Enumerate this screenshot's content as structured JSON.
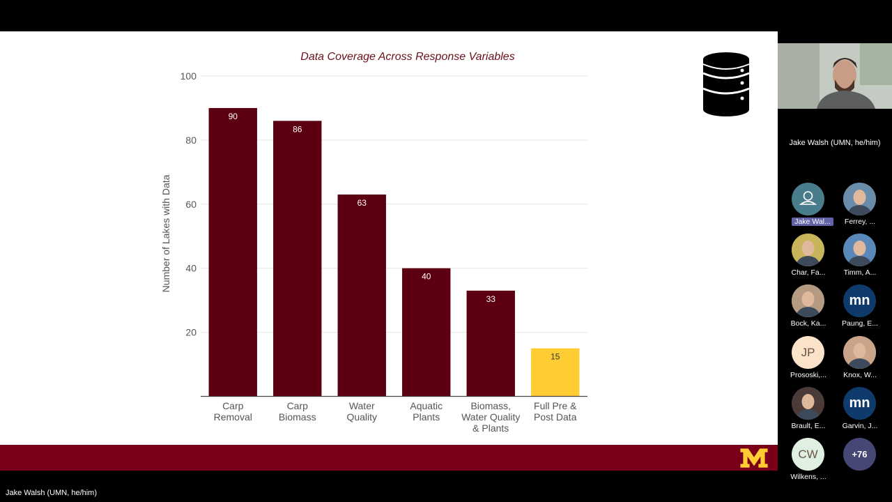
{
  "presenter": {
    "name": "Jake Walsh (UMN, he/him)"
  },
  "speaker_tile": {
    "name": "Jake Walsh (UMN, he/him)"
  },
  "colors": {
    "bar": "#5c0011",
    "highlight": "#ffcc33",
    "footer": "#7a0019",
    "title": "#6b0f1a"
  },
  "chart_data": {
    "type": "bar",
    "title": "Data Coverage Across Response Variables",
    "xlabel": "",
    "ylabel": "Number of Lakes with Data",
    "ylim": [
      0,
      100
    ],
    "yticks": [
      "20",
      "40",
      "60",
      "80",
      "100"
    ],
    "grid": true,
    "categories": [
      [
        "Carp",
        "Removal"
      ],
      [
        "Carp",
        "Biomass"
      ],
      [
        "Water",
        "Quality"
      ],
      [
        "Aquatic",
        "Plants"
      ],
      [
        "Biomass,",
        "Water Quality",
        "& Plants"
      ],
      [
        "Full Pre &",
        "Post Data"
      ]
    ],
    "values": [
      90,
      86,
      63,
      40,
      33,
      15
    ],
    "labels": [
      "90",
      "86",
      "63",
      "40",
      "33",
      "15"
    ],
    "highlighted_index": 5
  },
  "participants": [
    {
      "name": "Jake Wal...",
      "initials": "",
      "icon": "person-icon",
      "bg": "#4a7d8c",
      "highlight": true
    },
    {
      "name": "Ferrey, ...",
      "initials": "",
      "icon": "photo-avatar",
      "bg": "#6a8cab"
    },
    {
      "name": "Char, Fa...",
      "initials": "",
      "icon": "photo-avatar",
      "bg": "#c8b45a"
    },
    {
      "name": "Timm, A...",
      "initials": "",
      "icon": "photo-avatar",
      "bg": "#5a88b8"
    },
    {
      "name": "Bock, Ka...",
      "initials": "",
      "icon": "photo-avatar",
      "bg": "#b39a80"
    },
    {
      "name": "Paung, E...",
      "initials": "mn",
      "icon": "mn-logo",
      "bg": "#0e3b6b"
    },
    {
      "name": "Prososki,...",
      "initials": "JP",
      "icon": "",
      "bg": "#fbe3c9"
    },
    {
      "name": "Knox, W...",
      "initials": "",
      "icon": "photo-avatar",
      "bg": "#c9a48a"
    },
    {
      "name": "Brault, E...",
      "initials": "",
      "icon": "photo-avatar",
      "bg": "#4a3a38"
    },
    {
      "name": "Garvin, J...",
      "initials": "mn",
      "icon": "mn-logo",
      "bg": "#0e3b6b"
    },
    {
      "name": "Wilkens, ...",
      "initials": "CW",
      "icon": "",
      "bg": "#dff0e2"
    },
    {
      "name": "+76",
      "initials": "+76",
      "icon": "overflow-count",
      "bg": "#464775"
    }
  ]
}
